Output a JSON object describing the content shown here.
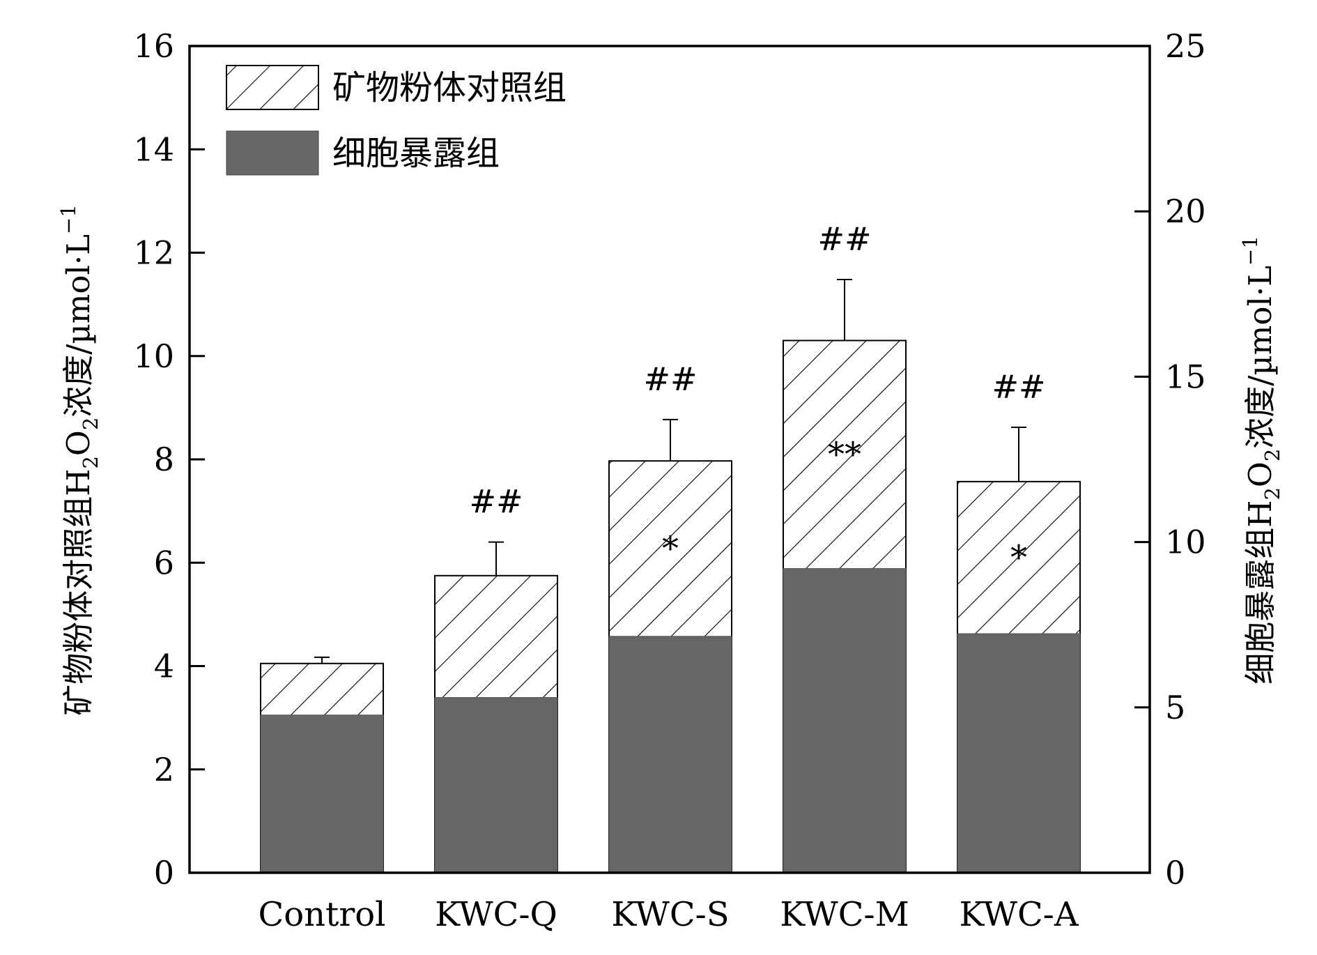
{
  "chart_data": {
    "type": "bar",
    "categories": [
      "Control",
      "KWC-Q",
      "KWC-S",
      "KWC-M",
      "KWC-A"
    ],
    "series": [
      {
        "name": "矿物粉体对照组",
        "axis": "left",
        "pattern": "hatched",
        "values": [
          4.05,
          5.75,
          7.97,
          10.3,
          7.57
        ],
        "errors": [
          0.12,
          0.65,
          0.8,
          1.18,
          1.05
        ],
        "annotations": [
          "",
          "##",
          "##",
          "##",
          "##"
        ]
      },
      {
        "name": "细胞暴露组",
        "axis": "right",
        "color": "#666666",
        "values": [
          4.77,
          5.3,
          7.15,
          9.2,
          7.23
        ],
        "annotations": [
          "",
          "",
          "*",
          "**",
          "*"
        ]
      }
    ],
    "left_axis": {
      "label_main": "矿物粉体对照组H",
      "label_sub": "2",
      "label_mid": "O",
      "label_sub2": "2",
      "label_tail": "浓度/µmol·L",
      "label_sup": "−1",
      "ylim": [
        0,
        16
      ],
      "ticks": [
        "0",
        "2",
        "4",
        "6",
        "8",
        "10",
        "12",
        "14",
        "16"
      ]
    },
    "right_axis": {
      "label_main": "细胞暴露组H",
      "label_sub": "2",
      "label_mid": "O",
      "label_sub2": "2",
      "label_tail": "浓度/µmol·L",
      "label_sup": "−1",
      "ylim": [
        0,
        25
      ],
      "ticks": [
        "0",
        "5",
        "10",
        "15",
        "20",
        "25"
      ]
    },
    "legend_position": "top-left",
    "grid": false,
    "colors": {
      "hatch": "#000000",
      "solid": "#666666",
      "axis": "#000000"
    }
  }
}
